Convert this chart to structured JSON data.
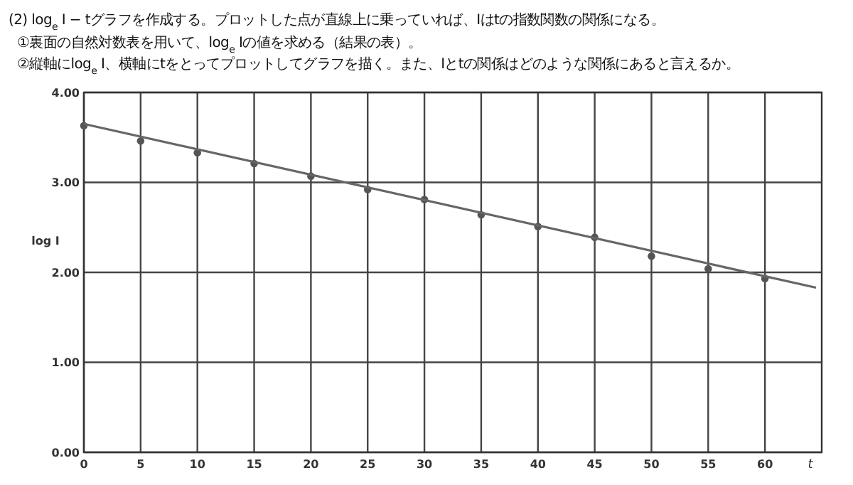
{
  "chart_data": {
    "type": "scatter",
    "title": "(2) log$_{e}$ I − tグラフを作成する。プロットした点が直線上に乗っていれば、Iはtの指数関数の関係になる。",
    "annotations": [
      "①裏面の自然対数表を用いて、log$_{e}$ Iの値を求める（結果の表）。",
      "②縦軸にlog$_{e}$ I、横軸にtをとってプロットしてグラフを描く。また、Iとtの関係はどのような関係にあると言えるか。"
    ],
    "xlabel": "t",
    "ylabel": "log I",
    "x": [
      0,
      5,
      10,
      15,
      20,
      25,
      30,
      35,
      40,
      45,
      50,
      55,
      60
    ],
    "series": [
      {
        "color": "#555555",
        "marker": "circle",
        "values": [
          3.63,
          3.46,
          3.33,
          3.21,
          3.07,
          2.92,
          2.81,
          2.64,
          2.51,
          2.39,
          2.18,
          2.04,
          1.93
        ]
      },
      {
        "type": "line",
        "color": "#666666",
        "marker": "none",
        "line_style": "solid",
        "x": [
          0,
          64.5
        ],
        "values": [
          3.65,
          1.83
        ]
      }
    ],
    "xlim": [
      0,
      65
    ],
    "xticks": [
      0,
      5,
      10,
      15,
      20,
      25,
      30,
      35,
      40,
      45,
      50,
      55,
      60
    ],
    "ylim": [
      0,
      4
    ],
    "yticks": [
      {
        "value": 0,
        "label": "0.00"
      },
      {
        "value": 1,
        "label": "1.00"
      },
      {
        "value": 2,
        "label": "2.00"
      },
      {
        "value": 3,
        "label": "3.00"
      },
      {
        "value": 4,
        "label": "4.00"
      }
    ],
    "grid": true
  }
}
